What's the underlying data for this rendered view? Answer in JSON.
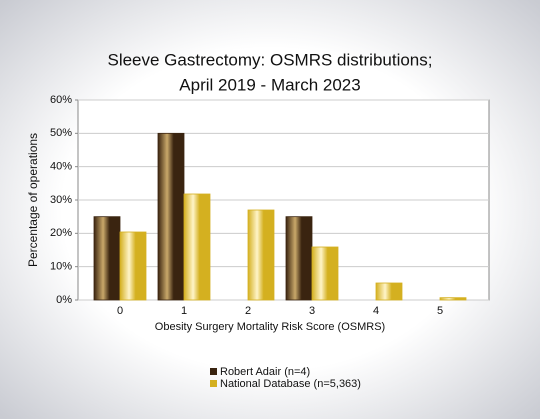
{
  "chart_data": {
    "type": "bar",
    "title": [
      "Sleeve Gastrectomy: OSMRS distributions;",
      "April 2019 - March 2023"
    ],
    "x_label": "Obesity Surgery Mortality Risk Score (OSMRS)",
    "y_label": "Percentage of operations",
    "categories": [
      "0",
      "1",
      "2",
      "3",
      "4",
      "5"
    ],
    "series": [
      {
        "name": "Robert Adair (n=4)",
        "color": "#3a2410",
        "values": [
          25,
          50,
          0,
          25,
          0,
          0
        ]
      },
      {
        "name": "National Database (n=5,363)",
        "color": "#d4b020",
        "values": [
          20.4,
          31.8,
          27,
          15.9,
          5.1,
          0.7
        ]
      }
    ],
    "ylim": [
      0,
      60
    ],
    "yticks": [
      {
        "value": 0,
        "label": "0%"
      },
      {
        "value": 10,
        "label": "10%"
      },
      {
        "value": 20,
        "label": "20%"
      },
      {
        "value": 30,
        "label": "30%"
      },
      {
        "value": 40,
        "label": "40%"
      },
      {
        "value": 50,
        "label": "50%"
      },
      {
        "value": 60,
        "label": "60%"
      }
    ],
    "grid": true,
    "legend": "bottom"
  }
}
